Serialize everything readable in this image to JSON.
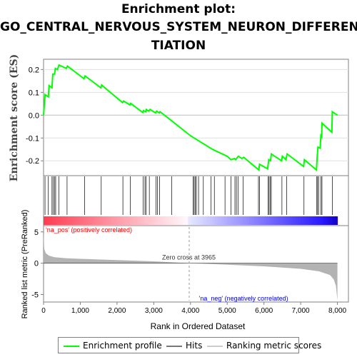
{
  "title_lines": [
    "Enrichment plot:",
    "GO_CENTRAL_NERVOUS_SYSTEM_NEURON_DIFFEREN",
    "TIATION"
  ],
  "colors": {
    "es_line": "#00ff00",
    "hit_line": "#000000",
    "metric_fill": "#b3b3b3",
    "pos_label": "#ff0000",
    "neg_label": "#0000ff"
  },
  "legend": {
    "enrichment": "Enrichment profile",
    "hits": "Hits",
    "ranking": "Ranking metric scores"
  },
  "chart_data": [
    {
      "panel": "enrichment",
      "type": "line",
      "ylabel": "Enrichment score (ES)",
      "ylim": [
        -0.265,
        0.245
      ],
      "xlim": [
        0,
        8300
      ],
      "yticks": [
        0.2,
        0.1,
        0.0,
        -0.1,
        -0.2
      ],
      "ytick_labels": [
        "0.2",
        "0.1",
        "0.0",
        "-0.1",
        "-0.2"
      ],
      "points": [
        [
          0,
          0.0
        ],
        [
          40,
          0.09
        ],
        [
          130,
          0.08
        ],
        [
          150,
          0.13
        ],
        [
          230,
          0.12
        ],
        [
          250,
          0.18
        ],
        [
          300,
          0.18
        ],
        [
          320,
          0.205
        ],
        [
          380,
          0.2
        ],
        [
          420,
          0.22
        ],
        [
          620,
          0.205
        ],
        [
          650,
          0.215
        ],
        [
          1100,
          0.16
        ],
        [
          1130,
          0.172
        ],
        [
          1560,
          0.12
        ],
        [
          1580,
          0.132
        ],
        [
          2150,
          0.055
        ],
        [
          2180,
          0.062
        ],
        [
          2350,
          0.045
        ],
        [
          2370,
          0.052
        ],
        [
          2700,
          0.012
        ],
        [
          2720,
          0.02
        ],
        [
          2780,
          0.015
        ],
        [
          2800,
          0.025
        ],
        [
          2860,
          0.018
        ],
        [
          2900,
          0.025
        ],
        [
          3050,
          0.01
        ],
        [
          3080,
          0.018
        ],
        [
          3150,
          0.01
        ],
        [
          3170,
          0.015
        ],
        [
          3450,
          -0.02
        ],
        [
          4000,
          -0.09
        ],
        [
          4600,
          -0.15
        ],
        [
          5000,
          -0.18
        ],
        [
          5100,
          -0.195
        ],
        [
          5200,
          -0.19
        ],
        [
          5230,
          -0.195
        ],
        [
          5300,
          -0.18
        ],
        [
          5400,
          -0.19
        ],
        [
          5450,
          -0.185
        ],
        [
          5860,
          -0.24
        ],
        [
          5880,
          -0.215
        ],
        [
          6100,
          -0.235
        ],
        [
          6130,
          -0.195
        ],
        [
          6180,
          -0.2
        ],
        [
          6200,
          -0.17
        ],
        [
          6480,
          -0.2
        ],
        [
          6500,
          -0.18
        ],
        [
          6600,
          -0.195
        ],
        [
          6630,
          -0.17
        ],
        [
          7080,
          -0.225
        ],
        [
          7100,
          -0.195
        ],
        [
          7430,
          -0.24
        ],
        [
          7450,
          -0.18
        ],
        [
          7470,
          -0.14
        ],
        [
          7530,
          -0.145
        ],
        [
          7550,
          -0.09
        ],
        [
          7570,
          -0.095
        ],
        [
          7580,
          -0.035
        ],
        [
          7850,
          -0.075
        ],
        [
          7860,
          0.015
        ],
        [
          8000,
          0.0
        ]
      ]
    },
    {
      "panel": "hits",
      "type": "hits",
      "positions": [
        40,
        130,
        230,
        260,
        300,
        330,
        420,
        640,
        1120,
        1570,
        2160,
        2360,
        2710,
        2760,
        2790,
        2880,
        3060,
        3100,
        3160,
        3490,
        4070,
        4100,
        4130,
        4160,
        4220,
        4350,
        4560,
        4650,
        4940,
        5100,
        5210,
        5250,
        5300,
        5430,
        5850,
        5880,
        6110,
        6140,
        6170,
        6200,
        6490,
        6620,
        7090,
        7440,
        7460,
        7490,
        7550,
        7580,
        7860
      ]
    },
    {
      "panel": "ranked_metric",
      "type": "area",
      "xlabel": "Rank in Ordered Dataset",
      "ylabel": "Ranked list metric (PreRanked)",
      "ylim": [
        -6.2,
        6.0
      ],
      "xlim": [
        0,
        8300
      ],
      "yticks": [
        5,
        0,
        -5
      ],
      "ytick_labels": [
        "5",
        "0",
        "-5"
      ],
      "xticks": [
        0,
        1000,
        2000,
        3000,
        4000,
        5000,
        6000,
        7000,
        8000
      ],
      "xtick_labels": [
        "0",
        "1,000",
        "2,000",
        "3,000",
        "4,000",
        "5,000",
        "6,000",
        "7,000",
        "8,000"
      ],
      "zero_cross": 3965,
      "zero_cross_label": "Zero cross at 3965",
      "pos_label": "'na_pos' (positively correlated)",
      "neg_label": "'na_neg' (negatively correlated)",
      "curve": [
        [
          0,
          5.0
        ],
        [
          20,
          2.3
        ],
        [
          60,
          1.6
        ],
        [
          150,
          1.2
        ],
        [
          300,
          0.95
        ],
        [
          600,
          0.8
        ],
        [
          1000,
          0.7
        ],
        [
          2000,
          0.5
        ],
        [
          3000,
          0.3
        ],
        [
          3965,
          0.0
        ],
        [
          5000,
          -0.25
        ],
        [
          6000,
          -0.5
        ],
        [
          7000,
          -0.9
        ],
        [
          7500,
          -1.3
        ],
        [
          7800,
          -1.9
        ],
        [
          7900,
          -2.6
        ],
        [
          7960,
          -3.6
        ],
        [
          8000,
          -6.0
        ]
      ]
    }
  ]
}
